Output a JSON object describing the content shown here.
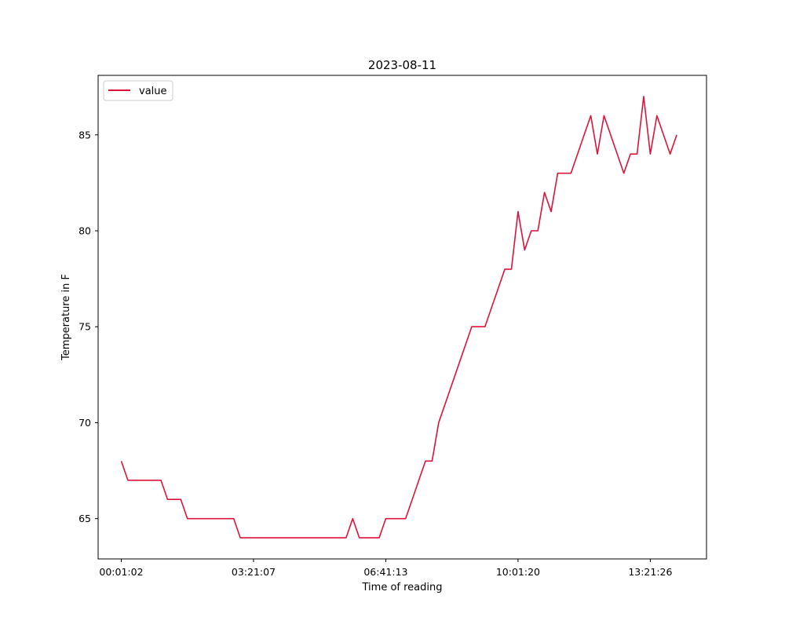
{
  "chart_data": {
    "type": "line",
    "title": "2023-08-11",
    "xlabel": "Time of reading",
    "ylabel": "Temperature in F",
    "xlim": [
      -3.5,
      88.5
    ],
    "ylim": [
      62.9,
      88.1
    ],
    "x_tick_positions": [
      0,
      20,
      40,
      60,
      80
    ],
    "x_tick_labels": [
      "00:01:02",
      "03:21:07",
      "06:41:13",
      "10:01:20",
      "13:21:26"
    ],
    "y_ticks": [
      65,
      70,
      75,
      80,
      85
    ],
    "grid": false,
    "legend_position": "upper-left",
    "series": [
      {
        "name": "value",
        "color": "#dc143c",
        "x": [
          0,
          1,
          2,
          3,
          4,
          5,
          6,
          7,
          8,
          9,
          10,
          11,
          12,
          13,
          14,
          15,
          16,
          17,
          18,
          19,
          20,
          21,
          22,
          23,
          24,
          25,
          26,
          27,
          28,
          29,
          30,
          31,
          32,
          33,
          34,
          35,
          36,
          37,
          38,
          39,
          40,
          41,
          42,
          43,
          44,
          45,
          46,
          47,
          48,
          49,
          50,
          51,
          52,
          53,
          54,
          55,
          56,
          57,
          58,
          59,
          60,
          61,
          62,
          63,
          64,
          65,
          66,
          67,
          68,
          69,
          70,
          71,
          72,
          73,
          74,
          75,
          76,
          77,
          78,
          79,
          80,
          81,
          82,
          83,
          84
        ],
        "values": [
          68,
          67,
          67,
          67,
          67,
          67,
          67,
          66,
          66,
          66,
          65,
          65,
          65,
          65,
          65,
          65,
          65,
          65,
          64,
          64,
          64,
          64,
          64,
          64,
          64,
          64,
          64,
          64,
          64,
          64,
          64,
          64,
          64,
          64,
          64,
          65,
          64,
          64,
          64,
          64,
          65,
          65,
          65,
          65,
          66,
          67,
          68,
          68,
          70,
          71,
          72,
          73,
          74,
          75,
          75,
          75,
          76,
          77,
          78,
          78,
          81,
          79,
          80,
          80,
          82,
          81,
          83,
          83,
          83,
          84,
          85,
          86,
          84,
          86,
          85,
          84,
          83,
          84,
          84,
          87,
          84,
          86,
          85,
          84,
          85
        ]
      }
    ]
  }
}
